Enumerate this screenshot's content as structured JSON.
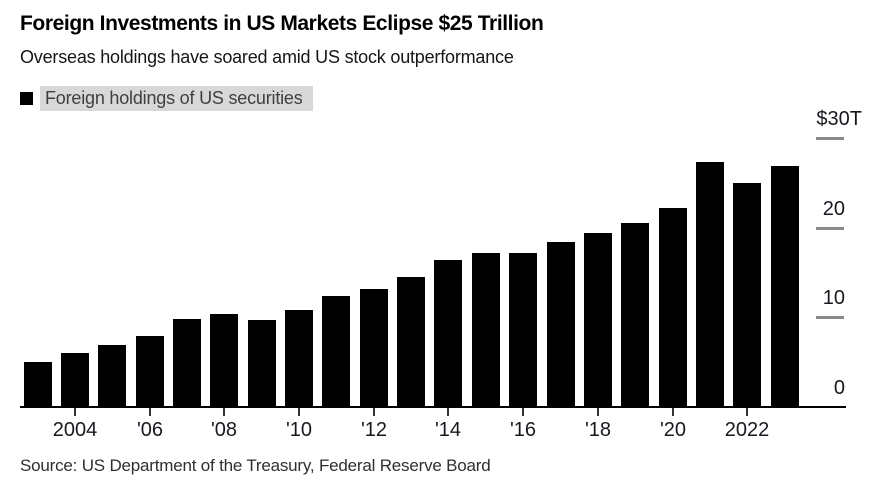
{
  "header": {
    "title": "Foreign Investments in US Markets Eclipse $25 Trillion",
    "subtitle": "Overseas holdings have soared amid US stock outperformance"
  },
  "legend": {
    "swatch_icon": "black-square-icon",
    "label": "Foreign holdings of US securities",
    "swatch_color": "#000000",
    "highlight_color": "#d8d8d8"
  },
  "source_note": "Source: US Department of the Treasury, Federal Reserve Board",
  "colors": {
    "bar": "#000000",
    "axis_line": "#000000",
    "x_tick": "#333333",
    "y_grid_dash": "#8a8a8a",
    "background": "#ffffff"
  },
  "chart_data": {
    "type": "bar",
    "title": "Foreign Investments in US Markets Eclipse $25 Trillion",
    "subtitle": "Overseas holdings have soared amid US stock outperformance",
    "unit": "USD trillions",
    "grid": "right-axis-tick-dashes-only",
    "legend_position": "top-left",
    "x": [
      2003,
      2004,
      2005,
      2006,
      2007,
      2008,
      2009,
      2010,
      2011,
      2012,
      2013,
      2014,
      2015,
      2016,
      2017,
      2018,
      2019,
      2020,
      2021,
      2022,
      2023
    ],
    "series": [
      {
        "name": "Foreign holdings of US securities",
        "values": [
          5.0,
          6.0,
          6.9,
          7.9,
          9.8,
          10.4,
          9.7,
          10.8,
          12.4,
          13.2,
          14.5,
          16.4,
          17.2,
          17.2,
          18.4,
          19.4,
          20.5,
          22.2,
          27.3,
          25.0,
          26.9
        ]
      }
    ],
    "x_ticks": [
      {
        "label": "2004",
        "year": 2004
      },
      {
        "label": "'06",
        "year": 2006
      },
      {
        "label": "'08",
        "year": 2008
      },
      {
        "label": "'10",
        "year": 2010
      },
      {
        "label": "'12",
        "year": 2012
      },
      {
        "label": "'14",
        "year": 2014
      },
      {
        "label": "'16",
        "year": 2016
      },
      {
        "label": "'18",
        "year": 2018
      },
      {
        "label": "'20",
        "year": 2020
      },
      {
        "label": "2022",
        "year": 2022
      }
    ],
    "y_ticks": [
      {
        "label": "$30T",
        "value": 30
      },
      {
        "label": "20",
        "value": 20
      },
      {
        "label": "10",
        "value": 10
      },
      {
        "label": "0",
        "value": 0
      }
    ],
    "ylim": [
      0,
      30
    ]
  }
}
